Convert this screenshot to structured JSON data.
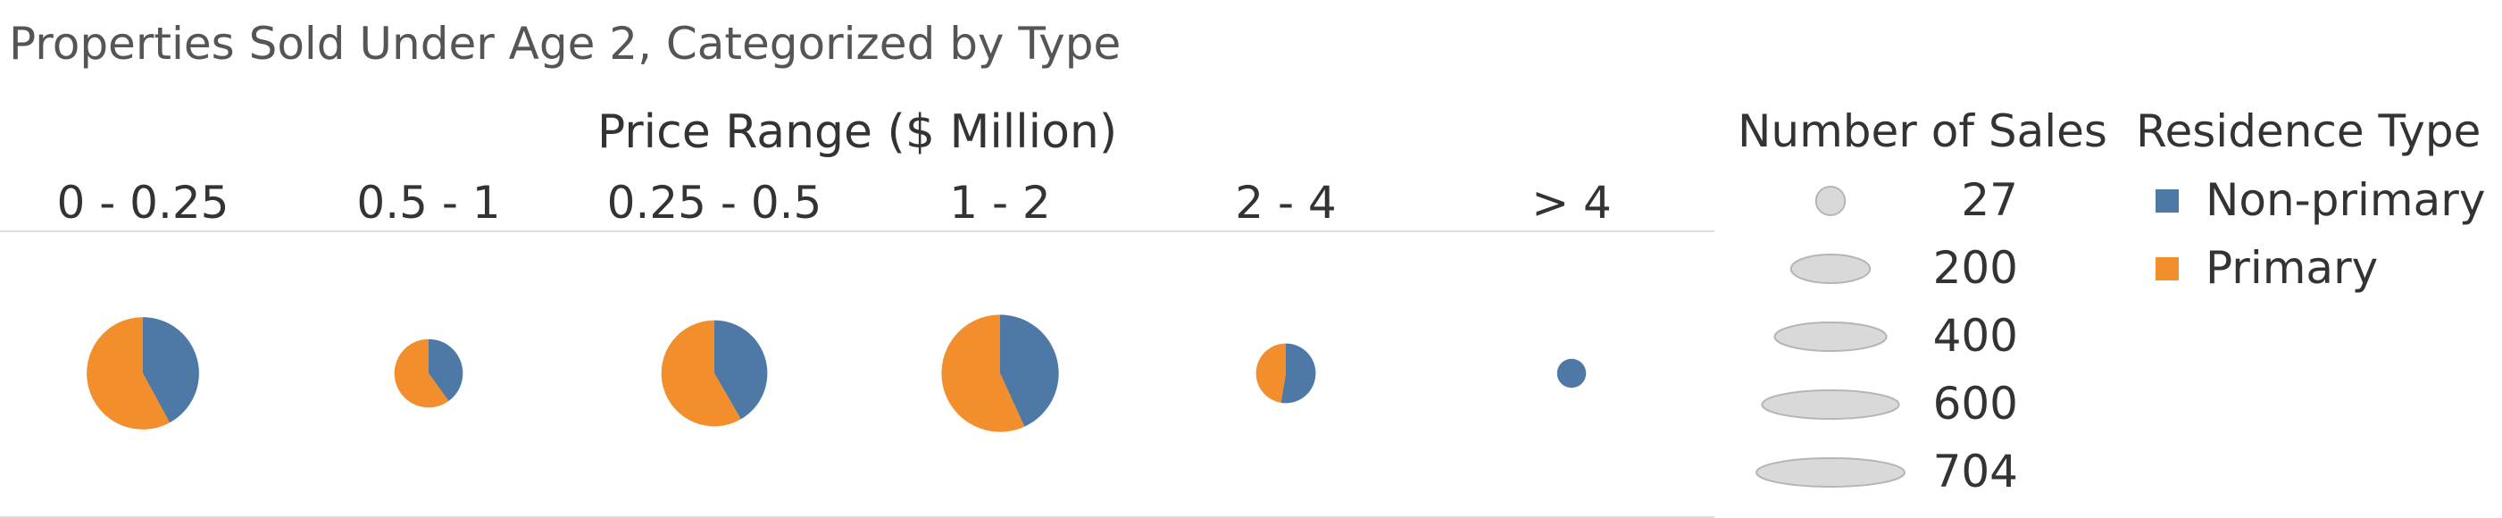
{
  "title": "Properties Sold Under Age 2, Categorized by Type",
  "chart_data": {
    "type": "pie",
    "header": "Price Range ($ Million)",
    "categories": [
      "0 - 0.25",
      "0.5 - 1",
      "0.25 - 0.5",
      "1 - 2",
      "2 - 4",
      "> 4"
    ],
    "size_measure": "Number of Sales",
    "color_measure": "Residence Type",
    "series": [
      {
        "name": "Non-primary",
        "color": "#4e79a7",
        "values": [
          170,
          60,
          150,
          190,
          60,
          27
        ]
      },
      {
        "name": "Primary",
        "color": "#f28e2b",
        "values": [
          234,
          90,
          210,
          250,
          54,
          0
        ]
      }
    ],
    "totals": [
      404,
      150,
      360,
      440,
      114,
      27
    ]
  },
  "legend": {
    "size_title": "Number of Sales",
    "size_items": [
      "27",
      "200",
      "400",
      "600",
      "704"
    ],
    "size_values": [
      27,
      200,
      400,
      600,
      704
    ],
    "type_title": "Residence Type",
    "type_items": [
      {
        "label": "Non-primary",
        "color": "#4e79a7"
      },
      {
        "label": "Primary",
        "color": "#f28e2b"
      }
    ]
  }
}
